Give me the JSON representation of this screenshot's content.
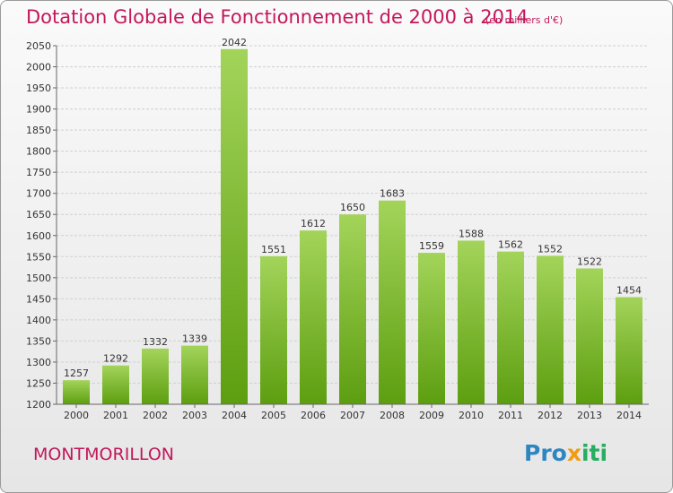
{
  "title": "Dotation Globale de Fonctionnement de 2000 à 2014",
  "subtitle": "(en milliers d'€)",
  "commune": "MONTMORILLON",
  "logo": {
    "p1": "Pro",
    "p2": "x",
    "p3": "iti"
  },
  "colors": {
    "bar_light": "#a3d45a",
    "bar_dark": "#5d9e10",
    "title": "#c2185b"
  },
  "chart_data": {
    "type": "bar",
    "categories": [
      "2000",
      "2001",
      "2002",
      "2003",
      "2004",
      "2005",
      "2006",
      "2007",
      "2008",
      "2009",
      "2010",
      "2011",
      "2012",
      "2013",
      "2014"
    ],
    "values": [
      1257,
      1292,
      1332,
      1339,
      2042,
      1551,
      1612,
      1650,
      1683,
      1559,
      1588,
      1562,
      1552,
      1522,
      1454
    ],
    "title": "Dotation Globale de Fonctionnement de 2000 à 2014",
    "xlabel": "",
    "ylabel": "",
    "ylim": [
      1200,
      2050
    ],
    "yticks": [
      1200,
      1250,
      1300,
      1350,
      1400,
      1450,
      1500,
      1550,
      1600,
      1650,
      1700,
      1750,
      1800,
      1850,
      1900,
      1950,
      2000,
      2050
    ],
    "grid": true,
    "legend": "none"
  }
}
